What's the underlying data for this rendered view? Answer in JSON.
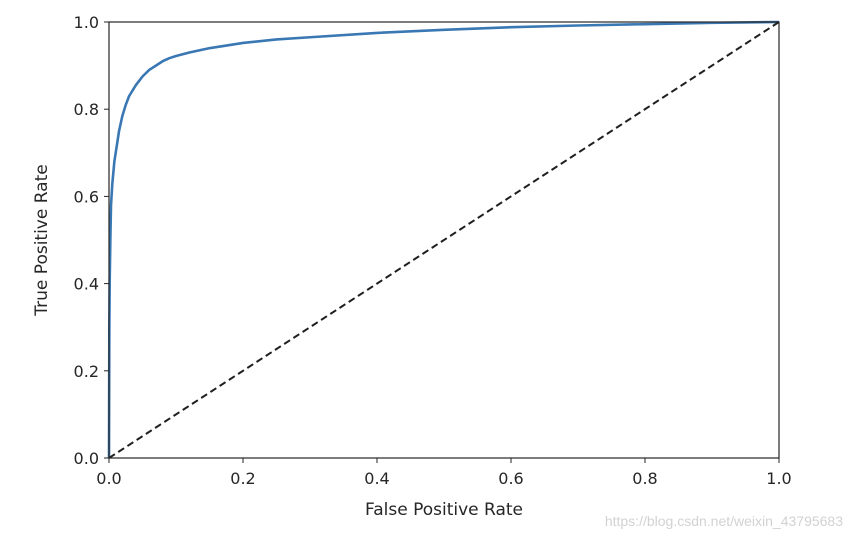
{
  "chart_data": {
    "type": "line",
    "title": "",
    "xlabel": "False Positive Rate",
    "ylabel": "True Positive Rate",
    "xlim": [
      0.0,
      1.0
    ],
    "ylim": [
      0.0,
      1.0
    ],
    "x_ticks": [
      "0.0",
      "0.2",
      "0.4",
      "0.6",
      "0.8",
      "1.0"
    ],
    "y_ticks": [
      "0.0",
      "0.2",
      "0.4",
      "0.6",
      "0.8",
      "1.0"
    ],
    "grid": false,
    "legend": "none",
    "series": [
      {
        "style": "solid",
        "color": "#3a78b4",
        "x": [
          0.0,
          0.0005,
          0.001,
          0.002,
          0.003,
          0.005,
          0.008,
          0.01,
          0.015,
          0.02,
          0.025,
          0.03,
          0.04,
          0.05,
          0.06,
          0.07,
          0.08,
          0.09,
          0.1,
          0.12,
          0.15,
          0.2,
          0.25,
          0.3,
          0.4,
          0.5,
          0.6,
          0.7,
          0.8,
          0.9,
          1.0
        ],
        "y": [
          0.0,
          0.3,
          0.4,
          0.5,
          0.58,
          0.63,
          0.68,
          0.7,
          0.75,
          0.785,
          0.81,
          0.83,
          0.855,
          0.875,
          0.89,
          0.9,
          0.91,
          0.917,
          0.922,
          0.93,
          0.94,
          0.952,
          0.96,
          0.965,
          0.975,
          0.982,
          0.988,
          0.992,
          0.995,
          0.998,
          1.0
        ]
      },
      {
        "style": "dashed",
        "color": "#1f1f1f",
        "x": [
          0.0,
          1.0
        ],
        "y": [
          0.0,
          1.0
        ]
      }
    ]
  },
  "watermark": "https://blog.csdn.net/weixin_43795683"
}
